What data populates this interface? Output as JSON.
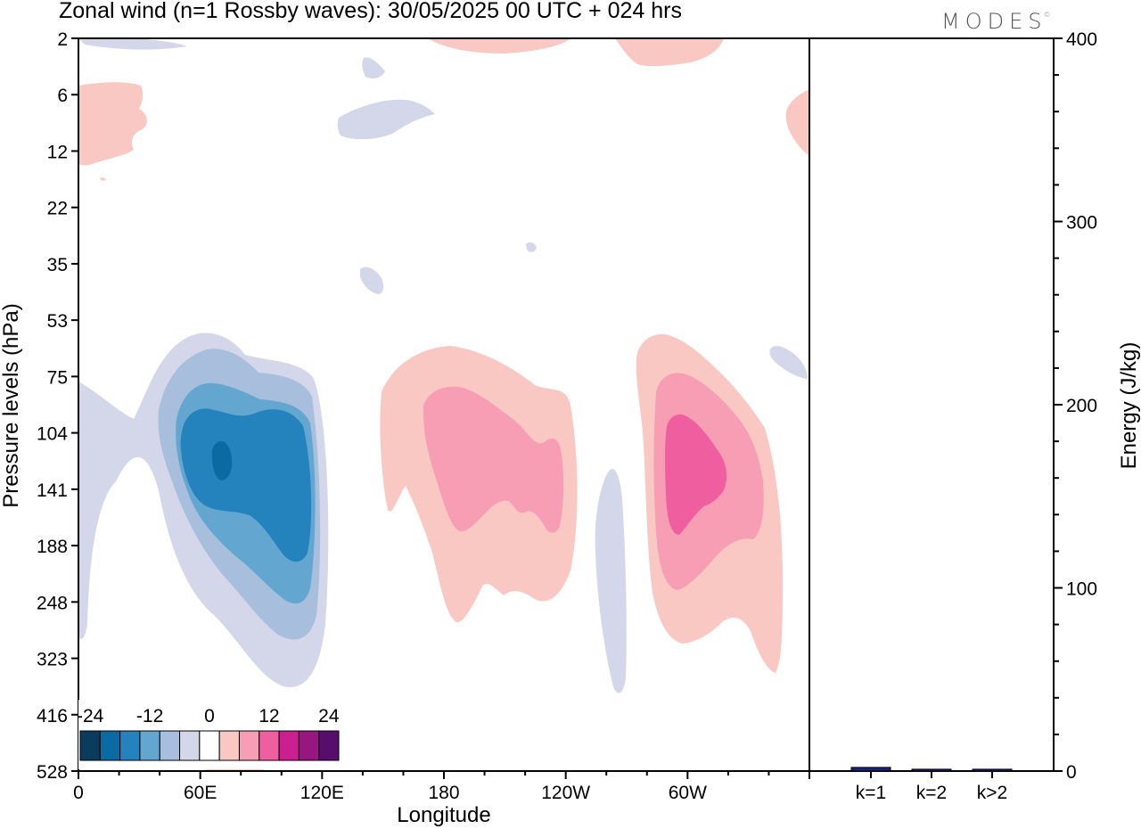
{
  "title": "Zonal wind (n=1 Rossby waves):  30/05/2025  00 UTC  + 024 hrs",
  "logo": "MODES",
  "logo_mark": "©",
  "chart_data": [
    {
      "type": "contour",
      "xlabel": "Longitude",
      "ylabel": "Pressure levels (hPa)",
      "x_ticks": [
        "0",
        "60E",
        "120E",
        "180",
        "120W",
        "60W"
      ],
      "x_tick_values": [
        0,
        60,
        120,
        180,
        240,
        300
      ],
      "xlim": [
        0,
        360
      ],
      "y_ticks": [
        "2",
        "6",
        "12",
        "22",
        "35",
        "53",
        "75",
        "104",
        "141",
        "188",
        "248",
        "323",
        "416",
        "528"
      ],
      "y_scale": "log (inverted)",
      "colorbar": {
        "tick_labels": [
          "-24",
          "-12",
          "0",
          "12",
          "24"
        ],
        "tick_values": [
          -24,
          -12,
          0,
          12,
          24
        ],
        "levels": [
          -24,
          -20,
          -16,
          -12,
          -8,
          -4,
          0,
          4,
          8,
          12,
          16,
          20,
          24
        ],
        "colors": [
          "#0b3c5d",
          "#0a6aa1",
          "#2482bd",
          "#63a6cf",
          "#a7bedc",
          "#d4d7e9",
          "#ffffff",
          "#f9c8c3",
          "#f79eb4",
          "#ef5f9f",
          "#cb1f8f",
          "#971680",
          "#560d6c"
        ]
      },
      "features": [
        {
          "sign": "negative",
          "center_lon": 68,
          "center_p": 120,
          "min_value": -22
        },
        {
          "sign": "positive",
          "center_lon": 205,
          "center_p": 140,
          "max_value": 10
        },
        {
          "sign": "positive",
          "center_lon": 305,
          "center_p": 135,
          "max_value": 14
        },
        {
          "sign": "negative",
          "center_lon": 265,
          "center_p": 250,
          "min_value": -4
        }
      ]
    },
    {
      "type": "bar",
      "ylabel": "Energy (J/kg)",
      "categories": [
        "k=1",
        "k=2",
        "k>2"
      ],
      "values": [
        2,
        1,
        1
      ],
      "ylim": [
        0,
        400
      ],
      "y_ticks": [
        "0",
        "100",
        "200",
        "300",
        "400"
      ],
      "y_tick_values": [
        0,
        100,
        200,
        300,
        400
      ],
      "bar_colors": [
        "#1a237e",
        "#1a237e",
        "#1a237e"
      ]
    }
  ]
}
